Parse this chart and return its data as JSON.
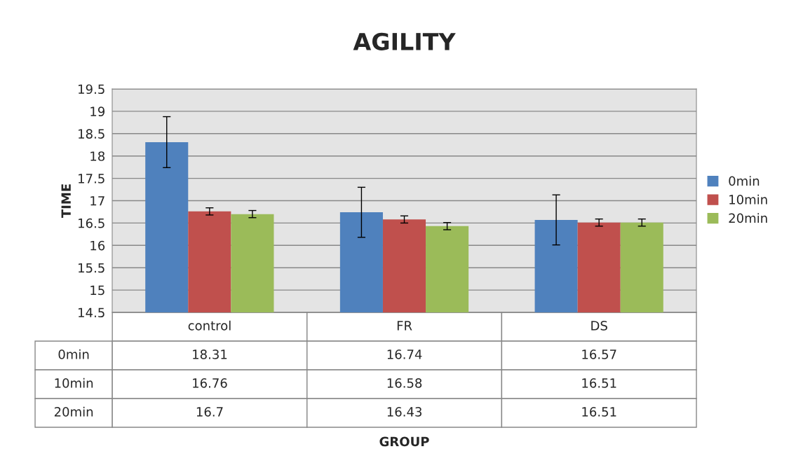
{
  "chart_data": {
    "type": "bar",
    "title": "AGILITY",
    "annotations": [
      "GROUP"
    ],
    "ylabel": "TIME",
    "categories": [
      "control",
      "FR",
      "DS"
    ],
    "series": [
      {
        "name": "0min",
        "color": "#4f81bd",
        "values": [
          18.31,
          16.74,
          16.57
        ],
        "errors": [
          0.57,
          0.56,
          0.56
        ]
      },
      {
        "name": "10min",
        "color": "#c0504d",
        "values": [
          16.76,
          16.58,
          16.51
        ],
        "errors": [
          0.08,
          0.08,
          0.08
        ]
      },
      {
        "name": "20min",
        "color": "#9bbb59",
        "values": [
          16.7,
          16.43,
          16.51
        ],
        "errors": [
          0.08,
          0.08,
          0.08
        ]
      }
    ],
    "ylim": [
      14.5,
      19.5
    ],
    "yticks": [
      14.5,
      15,
      15.5,
      16,
      16.5,
      17,
      17.5,
      18,
      18.5,
      19,
      19.5
    ],
    "grid": "y",
    "legend": "right",
    "data_labels": true
  }
}
